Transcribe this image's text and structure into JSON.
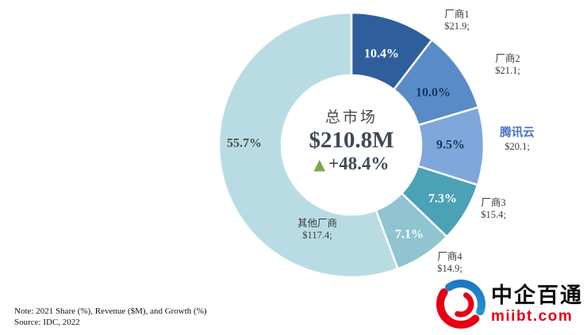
{
  "chart_data": {
    "type": "pie",
    "subtype": "donut",
    "center": {
      "title": "总市场",
      "total": "$210.8M",
      "growth_indicator": "▲",
      "growth": "+48.4%",
      "growth_color": "#7BAA47",
      "text_color": "#3E4A58"
    },
    "series": [
      {
        "name": "厂商1",
        "value_label": "$21.9;",
        "share_pct": 10.4,
        "share_label": "10.4%",
        "color": "#2E5F9C",
        "share_label_color": "#FFFFFF",
        "name_color": "#3B3B3B"
      },
      {
        "name": "厂商2",
        "value_label": "$21.1;",
        "share_pct": 10.0,
        "share_label": "10.0%",
        "color": "#5A8BC9",
        "share_label_color": "#17375E",
        "name_color": "#3B3B3B"
      },
      {
        "name": "腾讯云",
        "value_label": "$20.1;",
        "share_pct": 9.5,
        "share_label": "9.5%",
        "color": "#7FA7DB",
        "share_label_color": "#17375E",
        "name_color": "#4472C4"
      },
      {
        "name": "厂商3",
        "value_label": "$15.4;",
        "share_pct": 7.3,
        "share_label": "7.3%",
        "color": "#4BA1B6",
        "share_label_color": "#FFFFFF",
        "name_color": "#3B3B3B"
      },
      {
        "name": "厂商4",
        "value_label": "$14.9;",
        "share_pct": 7.1,
        "share_label": "7.1%",
        "color": "#8FC4D0",
        "share_label_color": "#FFFFFF",
        "name_color": "#3B3B3B"
      },
      {
        "name": "其他厂商",
        "value_label": "$117.4;",
        "share_pct": 55.7,
        "share_label": "55.7%",
        "color": "#B9DCE4",
        "share_label_color": "#4A4A4A",
        "name_color": "#3B3B3B"
      }
    ],
    "start_angle_deg": 0,
    "direction": "clockwise",
    "legend_position": "outside-callouts",
    "total_pct": 100.0
  },
  "footnote": {
    "note": "Note: 2021 Share (%), Revenue ($M), and Growth (%)",
    "source": "Source: IDC, 2022"
  },
  "logo": {
    "name": "中企百通",
    "domain": "miibt.com",
    "brand_red": "#E60012",
    "brand_blue": "#29ABE2"
  }
}
